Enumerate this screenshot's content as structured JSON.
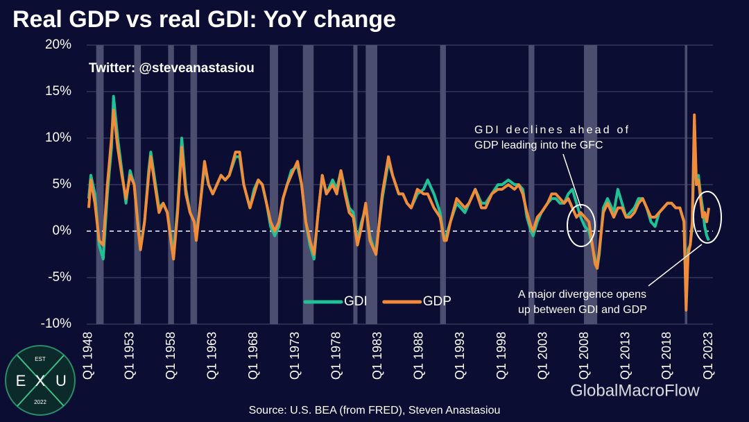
{
  "chart_data": {
    "type": "line",
    "title": "Real GDP vs real GDI: YoY change",
    "subtitle": "Twitter: @steveanastasiou",
    "source": "Source: U.S. BEA (from FRED), Steven Anastasiou",
    "annotations": [
      [
        "GDI declines ahead of",
        "GDP leading into the GFC"
      ],
      [
        "A major divergence opens",
        "up between GDI and GDP"
      ]
    ],
    "xlim": [
      1947.75,
      2023.5
    ],
    "xticks": [
      {
        "value": 1948,
        "label": "Q1 1948"
      },
      {
        "value": 1953,
        "label": "Q1 1953"
      },
      {
        "value": 1958,
        "label": "Q1 1958"
      },
      {
        "value": 1963,
        "label": "Q1 1963"
      },
      {
        "value": 1968,
        "label": "Q1 1968"
      },
      {
        "value": 1973,
        "label": "Q1 1973"
      },
      {
        "value": 1978,
        "label": "Q1 1978"
      },
      {
        "value": 1983,
        "label": "Q1 1983"
      },
      {
        "value": 1988,
        "label": "Q1 1988"
      },
      {
        "value": 1993,
        "label": "Q1 1993"
      },
      {
        "value": 1998,
        "label": "Q1 1998"
      },
      {
        "value": 2003,
        "label": "Q1 2003"
      },
      {
        "value": 2008,
        "label": "Q1 2008"
      },
      {
        "value": 2013,
        "label": "Q1 2013"
      },
      {
        "value": 2018,
        "label": "Q1 2018"
      },
      {
        "value": 2023,
        "label": "Q1 2023"
      }
    ],
    "ylim": [
      -10,
      20
    ],
    "yticks": [
      {
        "value": -10,
        "label": "-10%"
      },
      {
        "value": -5,
        "label": "-5%"
      },
      {
        "value": 0,
        "label": "0%"
      },
      {
        "value": 5,
        "label": "5%"
      },
      {
        "value": 10,
        "label": "10%"
      },
      {
        "value": 15,
        "label": "15%"
      },
      {
        "value": 20,
        "label": "20%"
      }
    ],
    "grid": true,
    "legend": "lower center",
    "recession_color": "#5c5f80",
    "recessions": [
      [
        1948.9,
        1949.8
      ],
      [
        1953.5,
        1954.3
      ],
      [
        1957.6,
        1958.3
      ],
      [
        1960.3,
        1961.1
      ],
      [
        1969.9,
        1970.9
      ],
      [
        1973.9,
        1975.2
      ],
      [
        1980.0,
        1980.5
      ],
      [
        1981.5,
        1982.9
      ],
      [
        1990.5,
        1991.2
      ],
      [
        2001.2,
        2001.9
      ],
      [
        2007.9,
        2009.5
      ],
      [
        2020.1,
        2020.4
      ]
    ],
    "x": [
      1948.0,
      1948.25,
      1948.75,
      1949.25,
      1949.75,
      1950.25,
      1950.75,
      1951.0,
      1951.5,
      1952.0,
      1952.5,
      1953.0,
      1953.5,
      1954.0,
      1954.25,
      1954.75,
      1955.25,
      1955.5,
      1956.0,
      1956.5,
      1957.0,
      1957.5,
      1958.0,
      1958.25,
      1958.75,
      1959.25,
      1959.75,
      1960.25,
      1960.75,
      1961.0,
      1961.5,
      1962.0,
      1962.5,
      1963.0,
      1963.5,
      1964.0,
      1964.5,
      1965.0,
      1965.75,
      1966.25,
      1966.75,
      1967.5,
      1968.0,
      1968.5,
      1969.0,
      1969.5,
      1970.0,
      1970.5,
      1971.0,
      1971.5,
      1972.0,
      1972.5,
      1973.25,
      1973.75,
      1974.25,
      1974.75,
      1975.25,
      1975.75,
      1976.25,
      1976.75,
      1977.5,
      1978.0,
      1978.5,
      1979.0,
      1979.5,
      1980.0,
      1980.5,
      1981.0,
      1981.5,
      1982.0,
      1982.5,
      1982.75,
      1983.5,
      1984.25,
      1984.75,
      1985.5,
      1986.0,
      1986.5,
      1987.0,
      1987.75,
      1988.5,
      1989.0,
      1989.75,
      1990.5,
      1991.0,
      1991.25,
      1991.75,
      1992.5,
      1993.0,
      1993.5,
      1994.0,
      1994.75,
      1995.5,
      1996.0,
      1996.75,
      1997.5,
      1998.0,
      1998.75,
      1999.5,
      2000.0,
      2000.5,
      2001.0,
      2001.5,
      2001.75,
      2002.25,
      2002.75,
      2003.5,
      2004.0,
      2004.5,
      2005.0,
      2005.5,
      2006.0,
      2006.5,
      2007.0,
      2007.5,
      2008.0,
      2008.5,
      2008.75,
      2009.25,
      2009.5,
      2009.75,
      2010.25,
      2010.75,
      2011.5,
      2012.0,
      2012.5,
      2013.0,
      2013.5,
      2014.0,
      2014.5,
      2015.0,
      2015.5,
      2016.0,
      2016.5,
      2017.0,
      2017.5,
      2018.0,
      2018.5,
      2019.0,
      2019.5,
      2020.0,
      2020.25,
      2020.5,
      2020.75,
      2021.0,
      2021.25,
      2021.5,
      2021.75,
      2022.0,
      2022.25,
      2022.5,
      2022.75,
      2023.0
    ],
    "series": [
      {
        "name": "GDI",
        "color": "#1fc295",
        "values": [
          3.5,
          6,
          4,
          -1.5,
          -3,
          4,
          9,
          14.5,
          10,
          6.5,
          3,
          6.5,
          5,
          0.5,
          -2,
          1,
          6.5,
          8.5,
          5.5,
          2.5,
          3,
          2,
          -1,
          -2.5,
          2.5,
          10,
          4.5,
          2,
          1,
          -0.5,
          3,
          7,
          5,
          4,
          5,
          6,
          5.5,
          6,
          8,
          8,
          5,
          2.5,
          4.5,
          5.5,
          5,
          3,
          0.5,
          -0.5,
          0.5,
          3.5,
          5,
          6.5,
          7,
          5,
          1,
          -1.5,
          -3,
          2,
          6,
          4,
          5.5,
          4.5,
          6.5,
          4.5,
          2.5,
          2,
          -1,
          1,
          2.5,
          -0.5,
          -2,
          -2,
          3.5,
          7.5,
          6,
          4,
          4,
          3,
          2.5,
          4,
          4.5,
          5.5,
          4,
          2,
          -1,
          -0.5,
          1,
          3,
          2.5,
          2,
          3,
          4.5,
          3,
          3,
          4,
          5,
          5,
          5.5,
          5,
          5,
          4.5,
          1.5,
          0,
          -0.5,
          1,
          2,
          3,
          3.5,
          3.5,
          3,
          3,
          4,
          4.5,
          3,
          1.5,
          0.5,
          0,
          -1,
          -3,
          -4,
          -2.5,
          2.5,
          3.5,
          2,
          4.5,
          3,
          1.5,
          2,
          2.5,
          3.5,
          3.5,
          2.5,
          1,
          0.5,
          2,
          2.5,
          3,
          3,
          2.5,
          2.5,
          1,
          -7.5,
          -2,
          -1.5,
          0.5,
          10.5,
          5,
          6,
          4,
          2.5,
          0.5,
          -0.5,
          -1
        ]
      },
      {
        "name": "GDP",
        "color": "#f08c3a",
        "values": [
          2.5,
          5.5,
          3,
          -1,
          -1.5,
          5,
          10,
          13,
          9,
          6,
          3.5,
          6,
          5,
          0,
          -2,
          1,
          6,
          8,
          5,
          2,
          3,
          2,
          -1.5,
          -3,
          2,
          9,
          4,
          2,
          1,
          -1,
          3,
          7.5,
          5,
          4,
          5,
          6,
          5.5,
          6,
          8.5,
          8.5,
          5,
          2.5,
          4,
          5.5,
          5,
          3,
          1,
          0,
          1,
          3.5,
          5,
          6,
          7.5,
          5,
          1,
          -1,
          -2.5,
          2,
          6,
          4,
          5,
          4,
          6.5,
          4,
          2,
          1.5,
          -1.5,
          0.5,
          3,
          -1,
          -2,
          -2.5,
          4,
          8,
          6,
          4,
          4,
          3,
          2.5,
          4.5,
          4,
          4,
          2.5,
          1.5,
          -1,
          -1,
          1,
          3.5,
          3,
          2.5,
          3,
          4.5,
          2.5,
          2.5,
          4,
          4.5,
          4.5,
          5,
          4.5,
          5,
          4,
          2,
          0.5,
          0,
          1.5,
          2,
          3,
          4,
          4,
          3.5,
          3,
          3.5,
          2.5,
          1.5,
          2,
          1.5,
          1,
          -0.5,
          -3.5,
          -4,
          -2,
          2,
          3,
          1.5,
          2.5,
          2.5,
          1.5,
          1.5,
          2,
          3,
          3.5,
          2.5,
          1.5,
          1.5,
          2,
          2.5,
          3,
          3,
          2.5,
          2.5,
          1,
          -8.5,
          -2.5,
          -1.5,
          1,
          12.5,
          5,
          5.5,
          3.5,
          1.5,
          2,
          1,
          2.5
        ]
      }
    ]
  },
  "logo": {
    "top": "EST",
    "left": "E",
    "middle": "X",
    "right": "U",
    "bottom": "2022"
  },
  "watermark": "GlobalMacroFlow"
}
